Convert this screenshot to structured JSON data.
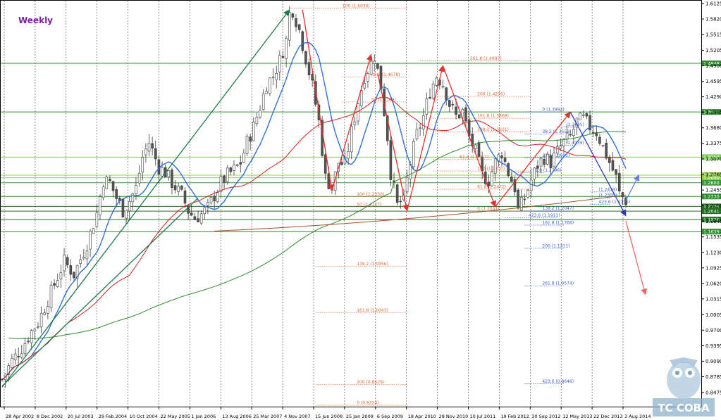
{
  "chart_data": {
    "type": "candlestick",
    "timeframe_label": "Weekly",
    "ylim": [
      0.8224,
      1.6125
    ],
    "y_ticks": [
      "1.6125",
      "1.5820",
      "1.5515",
      "1.5205",
      "1.4900",
      "1.4595",
      "1.4290",
      "1.3985",
      "1.3680",
      "1.3375",
      "1.3070",
      "1.2765",
      "1.2455",
      "1.2150",
      "1.1845",
      "1.1535",
      "1.1230",
      "1.0925",
      "1.0620",
      "1.0315",
      "1.0005",
      "0.9700",
      "0.9395",
      "0.9090",
      "0.8785",
      "0.8475"
    ],
    "x_ticks": [
      "28 Apr 2002",
      "8 Dec 2002",
      "20 Jul 2003",
      "29 Feb 2004",
      "10 Oct 2004",
      "22 May 2005",
      "1 Jan 2006",
      "13 Aug 2006",
      "25 Mar 2007",
      "4 Nov 2007",
      "15 Jun 2008",
      "25 Jan 2009",
      "6 Sep 2009",
      "18 Apr 2010",
      "28 Nov 2010",
      "10 Jul 2011",
      "19 Feb 2012",
      "30 Sep 2012",
      "12 May 2013",
      "22 Dec 2013",
      "3 Aug 2014"
    ],
    "price_path": [
      [
        0,
        0.873
      ],
      [
        3,
        0.91
      ],
      [
        6,
        0.935
      ],
      [
        9,
        0.968
      ],
      [
        11,
        0.985
      ],
      [
        13,
        1.015
      ],
      [
        16,
        1.06
      ],
      [
        19,
        1.105
      ],
      [
        22,
        1.08
      ],
      [
        26,
        1.14
      ],
      [
        29,
        1.2
      ],
      [
        31,
        1.265
      ],
      [
        33,
        1.26
      ],
      [
        35,
        1.23
      ],
      [
        37,
        1.205
      ],
      [
        39,
        1.225
      ],
      [
        41,
        1.25
      ],
      [
        43,
        1.31
      ],
      [
        45,
        1.34
      ],
      [
        48,
        1.29
      ],
      [
        50,
        1.28
      ],
      [
        52,
        1.26
      ],
      [
        55,
        1.235
      ],
      [
        57,
        1.205
      ],
      [
        59,
        1.19
      ],
      [
        61,
        1.198
      ],
      [
        63,
        1.21
      ],
      [
        65,
        1.235
      ],
      [
        67,
        1.26
      ],
      [
        69,
        1.275
      ],
      [
        71,
        1.285
      ],
      [
        73,
        1.3
      ],
      [
        75,
        1.34
      ],
      [
        77,
        1.37
      ],
      [
        79,
        1.41
      ],
      [
        81,
        1.455
      ],
      [
        83,
        1.47
      ],
      [
        85,
        1.5
      ],
      [
        87,
        1.54
      ],
      [
        88,
        1.592
      ],
      [
        89,
        1.6
      ],
      [
        91,
        1.56
      ],
      [
        93,
        1.505
      ],
      [
        95,
        1.45
      ],
      [
        97,
        1.38
      ],
      [
        99,
        1.27
      ],
      [
        101,
        1.25
      ],
      [
        103,
        1.3
      ],
      [
        105,
        1.295
      ],
      [
        107,
        1.36
      ],
      [
        109,
        1.42
      ],
      [
        111,
        1.47
      ],
      [
        113,
        1.495
      ],
      [
        114,
        1.51
      ],
      [
        116,
        1.45
      ],
      [
        118,
        1.35
      ],
      [
        119,
        1.28
      ],
      [
        121,
        1.215
      ],
      [
        123,
        1.23
      ],
      [
        125,
        1.3
      ],
      [
        127,
        1.355
      ],
      [
        129,
        1.39
      ],
      [
        131,
        1.44
      ],
      [
        133,
        1.47
      ],
      [
        135,
        1.455
      ],
      [
        137,
        1.415
      ],
      [
        139,
        1.39
      ],
      [
        141,
        1.4
      ],
      [
        143,
        1.35
      ],
      [
        145,
        1.32
      ],
      [
        147,
        1.275
      ],
      [
        149,
        1.265
      ],
      [
        151,
        1.3
      ],
      [
        153,
        1.32
      ],
      [
        155,
        1.28
      ],
      [
        157,
        1.25
      ],
      [
        158,
        1.205
      ],
      [
        160,
        1.23
      ],
      [
        162,
        1.265
      ],
      [
        164,
        1.295
      ],
      [
        166,
        1.31
      ],
      [
        168,
        1.3
      ],
      [
        170,
        1.32
      ],
      [
        172,
        1.34
      ],
      [
        174,
        1.35
      ],
      [
        176,
        1.38
      ],
      [
        178,
        1.385
      ],
      [
        180,
        1.37
      ],
      [
        182,
        1.36
      ],
      [
        184,
        1.33
      ],
      [
        186,
        1.3
      ],
      [
        188,
        1.27
      ],
      [
        189,
        1.238
      ],
      [
        191,
        1.225
      ]
    ],
    "n_bars": 192,
    "indicators": [
      {
        "kind": "sma",
        "period": 10,
        "color": "#2f6fd6"
      },
      {
        "kind": "sma",
        "period": 40,
        "color": "#d12020"
      },
      {
        "kind": "sma",
        "period": 120,
        "color": "#2f8a2f"
      },
      {
        "kind": "sma_partial",
        "from": 65,
        "to": 191,
        "start": 1.165,
        "end": 1.236,
        "color": "#a0522d"
      }
    ],
    "horizontal_levels": [
      {
        "value": 1.4948,
        "label": "1.4948",
        "color": "#2e8b2e"
      },
      {
        "value": 1.3992,
        "label": "1.3992",
        "color": "#2e8b2e"
      },
      {
        "value": 1.3104,
        "label": "1.3104",
        "color": "#7ccc5a"
      },
      {
        "value": 1.2749,
        "label": "1.2749",
        "color": "#8fd04a"
      },
      {
        "value": 1.2699,
        "label": "1.2699",
        "color": "#8fd04a"
      },
      {
        "value": 1.26,
        "label": "1.2600",
        "color": "#3a9a3a"
      },
      {
        "value": 1.233,
        "label": "1.2330",
        "color": "#2e8b2e"
      },
      {
        "value": 1.2134,
        "label": "1.2134",
        "color": "#1f6f1f"
      },
      {
        "value": 1.2041,
        "label": "1.2041",
        "color": "#1f6f1f"
      },
      {
        "value": 1.1876,
        "label": "1.1876",
        "color": "#1f6f1f"
      },
      {
        "value": 1.1639,
        "label": "1.1639",
        "color": "#2e8b2e"
      }
    ],
    "fib_levels_red": [
      {
        "value": 1.603,
        "label": "100 (1.6030)",
        "x0": 88,
        "x1": 124
      },
      {
        "value": 1.4997,
        "label": "261.8 (1.4997)",
        "x0": 128,
        "x1": 162
      },
      {
        "value": 1.4678,
        "label": "38.2 (1.4678)",
        "x0": 104,
        "x1": 124
      },
      {
        "value": 1.4299,
        "label": "200 (1.4299)",
        "x0": 132,
        "x1": 162
      },
      {
        "value": 1.4189,
        "label": "50 (1.4189)",
        "x0": 104,
        "x1": 124
      },
      {
        "value": 1.3868,
        "label": "161.8 (1.3868)",
        "x0": 132,
        "x1": 162
      },
      {
        "value": 1.3601,
        "label": "138.2 (1.3601)",
        "x0": 132,
        "x1": 162
      },
      {
        "value": 1.3057,
        "label": "61.8 (1.3057)",
        "x0": 132,
        "x1": 150
      },
      {
        "value": 1.283,
        "label": "100 (1.2830)",
        "x0": 132,
        "x1": 162
      },
      {
        "value": 1.2472,
        "label": "61.8 (1.2472)",
        "x0": 132,
        "x1": 162
      },
      {
        "value": 1.233,
        "label": "100 (1.2330)",
        "x0": 96,
        "x1": 124
      },
      {
        "value": 1.2127,
        "label": "50 (1.2127)",
        "x0": 96,
        "x1": 124
      },
      {
        "value": 1.2041,
        "label": "0 (1.2041)",
        "x0": 132,
        "x1": 162
      },
      {
        "value": 1.0956,
        "label": "138.2 (1.0956)",
        "x0": 96,
        "x1": 124
      },
      {
        "value": 1.0043,
        "label": "161.8 (1.0043)",
        "x0": 96,
        "x1": 124
      },
      {
        "value": 0.8629,
        "label": "200 (0.8629)",
        "x0": 96,
        "x1": 124
      },
      {
        "value": 0.8224,
        "label": "0 (0.8224)",
        "x0": 96,
        "x1": 124
      }
    ],
    "fib_levels_blue": [
      {
        "value": 1.3992,
        "label": "0 (1.3992)",
        "x0": 160,
        "x1": 172
      },
      {
        "value": 1.3695,
        "label": "(1.3695)",
        "x0": 170,
        "x1": 176
      },
      {
        "value": 1.3559,
        "label": "38.2 (1.3559)",
        "x0": 160,
        "x1": 172
      },
      {
        "value": 1.3339,
        "label": "(1.3339)",
        "x0": 170,
        "x1": 176
      },
      {
        "value": 1.3091,
        "label": "200 (1.3091)",
        "x0": 160,
        "x1": 172
      },
      {
        "value": 1.2796,
        "label": "261.8 (1.2796)",
        "x0": 158,
        "x1": 166
      },
      {
        "value": 1.2419,
        "label": "(1.2419)",
        "x0": 180,
        "x1": 186
      },
      {
        "value": 1.2305,
        "label": "(1.2305)",
        "x0": 180,
        "x1": 186
      },
      {
        "value": 1.2175,
        "label": "423.6 (1.2175)",
        "x0": 180,
        "x1": 186
      },
      {
        "value": 1.2047,
        "label": "138.2 (1.2047)",
        "x0": 160,
        "x1": 172
      },
      {
        "value": 1.1911,
        "label": "423.6 (1.1911)",
        "x0": 154,
        "x1": 170
      },
      {
        "value": 1.1766,
        "label": "161.8 (1.1766)",
        "x0": 160,
        "x1": 172
      },
      {
        "value": 1.1311,
        "label": "200 (1.1311)",
        "x0": 160,
        "x1": 172
      },
      {
        "value": 1.0574,
        "label": "261.8 (1.0574)",
        "x0": 160,
        "x1": 172
      },
      {
        "value": 0.8646,
        "label": "423.6 (0.8646)",
        "x0": 160,
        "x1": 172
      }
    ],
    "trend_lines": [
      {
        "from": [
          0,
          0.858
        ],
        "to": [
          88,
          1.6
        ],
        "color": "#1e7a4a",
        "arrow": true
      },
      {
        "from": [
          0,
          0.86
        ],
        "to": [
          60,
          1.23
        ],
        "color": "#1e7a4a",
        "arrow": false
      },
      {
        "from": [
          92,
          1.6
        ],
        "to": [
          101,
          1.245
        ],
        "color": "#e03030",
        "arrow": true
      },
      {
        "from": [
          101,
          1.245
        ],
        "to": [
          113,
          1.512
        ],
        "color": "#e03030",
        "arrow": true
      },
      {
        "from": [
          115,
          1.475
        ],
        "to": [
          124,
          1.205
        ],
        "color": "#e03030",
        "arrow": true
      },
      {
        "from": [
          124,
          1.205
        ],
        "to": [
          135,
          1.49
        ],
        "color": "#e03030",
        "arrow": true
      },
      {
        "from": [
          135,
          1.49
        ],
        "to": [
          151,
          1.213
        ],
        "color": "#e03030",
        "arrow": true
      },
      {
        "from": [
          151,
          1.213
        ],
        "to": [
          174,
          1.399
        ],
        "color": "#e03030",
        "arrow": true
      },
      {
        "from": [
          174,
          1.399
        ],
        "to": [
          191,
          1.195
        ],
        "color": "#2c3bbd",
        "arrow": true
      },
      {
        "from": [
          191,
          1.225
        ],
        "to": [
          195,
          1.275
        ],
        "color": "#6b7ce8",
        "arrow": true
      },
      {
        "from": [
          191,
          1.185
        ],
        "to": [
          197,
          1.04
        ],
        "color": "#e86a6a",
        "arrow": true
      }
    ],
    "logo_text": "TC СОВА"
  }
}
